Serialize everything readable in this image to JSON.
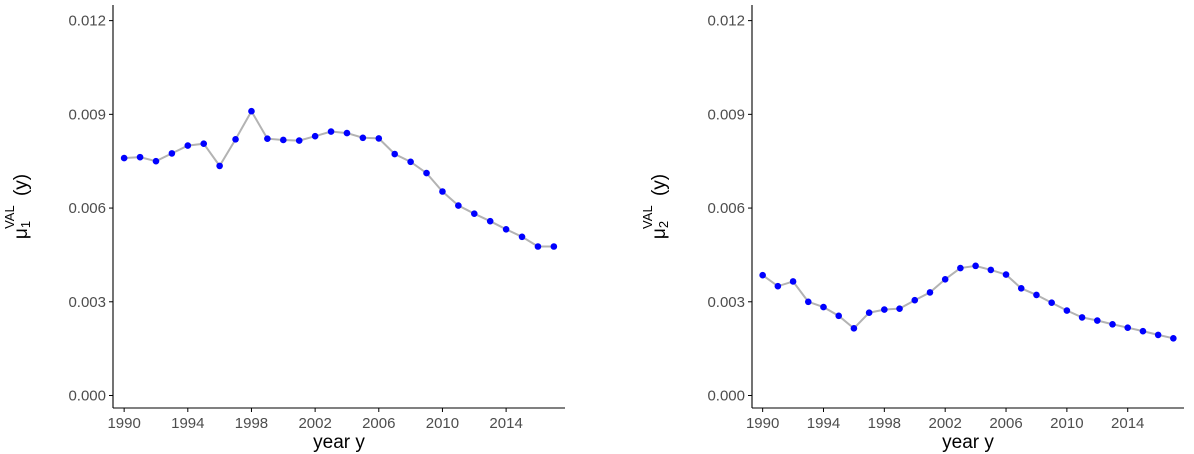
{
  "colors": {
    "point": "#0000ff",
    "line": "#b3b3b3",
    "axis": "#000000",
    "tick_text": "#4d4d4d"
  },
  "chart_data": [
    {
      "type": "line",
      "xlabel": "year y",
      "ylabel": {
        "main": "μ",
        "sub": "1",
        "sup": "VAL",
        "arg": "(y)"
      },
      "x_ticks": [
        1990,
        1994,
        1998,
        2002,
        2006,
        2010,
        2014
      ],
      "y_ticks": [
        "0.000",
        "0.003",
        "0.006",
        "0.009",
        "0.012"
      ],
      "xlim": [
        1989.3,
        2017.7
      ],
      "ylim": [
        -0.0004,
        0.0125
      ],
      "grid": false,
      "series": [
        {
          "x": [
            1990,
            1991,
            1992,
            1993,
            1994,
            1995,
            1996,
            1997,
            1998,
            1999,
            2000,
            2001,
            2002,
            2003,
            2004,
            2005,
            2006,
            2007,
            2008,
            2009,
            2010,
            2011,
            2012,
            2013,
            2014,
            2015,
            2016,
            2017
          ],
          "y": [
            0.0076,
            0.00763,
            0.0075,
            0.00775,
            0.008,
            0.00806,
            0.00735,
            0.0082,
            0.0091,
            0.00822,
            0.00818,
            0.00816,
            0.0083,
            0.00845,
            0.0084,
            0.00825,
            0.00823,
            0.00773,
            0.00748,
            0.00712,
            0.00653,
            0.00608,
            0.00582,
            0.00558,
            0.00532,
            0.00508,
            0.00477,
            0.00477
          ]
        }
      ]
    },
    {
      "type": "line",
      "xlabel": "year y",
      "ylabel": {
        "main": "μ",
        "sub": "2",
        "sup": "VAL",
        "arg": "(y)"
      },
      "x_ticks": [
        1990,
        1994,
        1998,
        2002,
        2006,
        2010,
        2014
      ],
      "y_ticks": [
        "0.000",
        "0.003",
        "0.006",
        "0.009",
        "0.012"
      ],
      "xlim": [
        1989.3,
        2017.7
      ],
      "ylim": [
        -0.0004,
        0.0125
      ],
      "grid": false,
      "series": [
        {
          "x": [
            1990,
            1991,
            1992,
            1993,
            1994,
            1995,
            1996,
            1997,
            1998,
            1999,
            2000,
            2001,
            2002,
            2003,
            2004,
            2005,
            2006,
            2007,
            2008,
            2009,
            2010,
            2011,
            2012,
            2013,
            2014,
            2015,
            2016,
            2017
          ],
          "y": [
            0.00385,
            0.0035,
            0.00365,
            0.003,
            0.00283,
            0.00255,
            0.00215,
            0.00265,
            0.00275,
            0.00278,
            0.00305,
            0.0033,
            0.00372,
            0.00408,
            0.00415,
            0.00402,
            0.00387,
            0.00343,
            0.00322,
            0.00297,
            0.00272,
            0.0025,
            0.0024,
            0.00228,
            0.00217,
            0.00206,
            0.00194,
            0.00183
          ]
        }
      ]
    }
  ]
}
